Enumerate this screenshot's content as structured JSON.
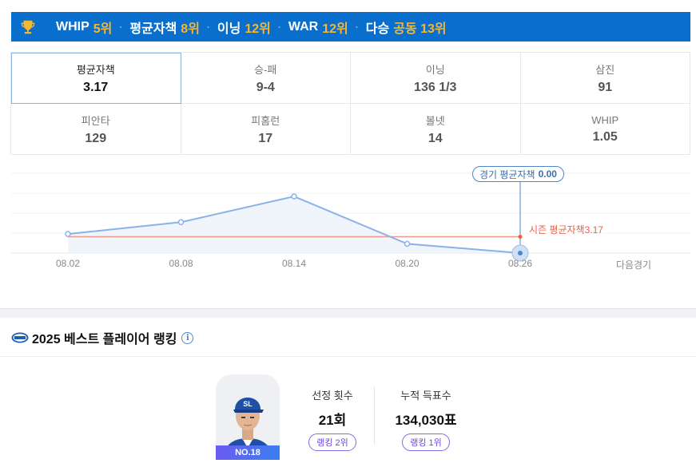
{
  "rank_banner": {
    "icon": "trophy-icon",
    "items": [
      {
        "label": "WHIP",
        "value": "5위"
      },
      {
        "label": "평균자책",
        "value": "8위"
      },
      {
        "label": "이닝",
        "value": "12위"
      },
      {
        "label": "WAR",
        "value": "12위"
      },
      {
        "label": "다승",
        "value": "공동 13위"
      }
    ]
  },
  "stats": [
    {
      "label": "평균자책",
      "value": "3.17"
    },
    {
      "label": "승-패",
      "value": "9-4"
    },
    {
      "label": "이닝",
      "value": "136 1/3"
    },
    {
      "label": "삼진",
      "value": "91"
    },
    {
      "label": "피안타",
      "value": "129"
    },
    {
      "label": "피홈런",
      "value": "17"
    },
    {
      "label": "볼넷",
      "value": "14"
    },
    {
      "label": "WHIP",
      "value": "1.05"
    }
  ],
  "chart": {
    "tooltip_label": "경기 평균자책",
    "tooltip_value": "0.00",
    "season_avg_label": "시즌 평균자책",
    "season_avg_value": "3.17",
    "next_game_label": "다음경기"
  },
  "chart_data": {
    "type": "line",
    "categories": [
      "08.02",
      "08.08",
      "08.14",
      "08.20",
      "08.26"
    ],
    "values": [
      3.7,
      6.0,
      11.0,
      1.8,
      0.0
    ],
    "reference_line": 3.17,
    "ylim": [
      0,
      15.5
    ],
    "grid": true,
    "line_color": "#8ab2ea",
    "avg_color": "#f29a8c"
  },
  "best_player": {
    "title": "2025 베스트 플레이어 랭킹",
    "player_number": "NO.18",
    "selection_count": {
      "label": "선정 횟수",
      "value": "21회",
      "rank": "랭킹 2위"
    },
    "total_votes": {
      "label": "누적 득표수",
      "value": "134,030표",
      "rank": "랭킹 1위"
    }
  }
}
